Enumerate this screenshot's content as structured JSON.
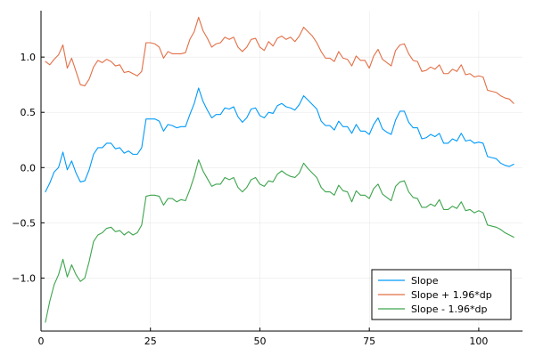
{
  "chart_data": {
    "type": "line",
    "title": "",
    "xlabel": "",
    "ylabel": "",
    "xlim": [
      0,
      110
    ],
    "ylim": [
      -1.48,
      1.42
    ],
    "x_ticks": [
      0,
      25,
      50,
      75,
      100
    ],
    "x_tick_labels": [
      "0",
      "25",
      "50",
      "75",
      "100"
    ],
    "y_ticks": [
      -1.0,
      -0.5,
      0.0,
      0.5,
      1.0
    ],
    "y_tick_labels": [
      "−1.0",
      "−0.5",
      "0.0",
      "0.5",
      "1.0"
    ],
    "grid": true,
    "legend_position": "bottom-right",
    "x": [
      1,
      2,
      3,
      4,
      5,
      6,
      7,
      8,
      9,
      10,
      11,
      12,
      13,
      14,
      15,
      16,
      17,
      18,
      19,
      20,
      21,
      22,
      23,
      24,
      25,
      26,
      27,
      28,
      29,
      30,
      31,
      32,
      33,
      34,
      35,
      36,
      37,
      38,
      39,
      40,
      41,
      42,
      43,
      44,
      45,
      46,
      47,
      48,
      49,
      50,
      51,
      52,
      53,
      54,
      55,
      56,
      57,
      58,
      59,
      60,
      61,
      62,
      63,
      64,
      65,
      66,
      67,
      68,
      69,
      70,
      71,
      72,
      73,
      74,
      75,
      76,
      77,
      78,
      79,
      80,
      81,
      82,
      83,
      84,
      85,
      86,
      87,
      88,
      89,
      90,
      91,
      92,
      93,
      94,
      95,
      96,
      97,
      98,
      99,
      100,
      101,
      102,
      103,
      104,
      105,
      106,
      107,
      108
    ],
    "series": [
      {
        "name": "Slope",
        "color": "#009AFA",
        "values": [
          -0.22,
          -0.14,
          -0.04,
          0.0,
          0.14,
          -0.02,
          0.06,
          -0.05,
          -0.13,
          -0.12,
          -0.02,
          0.12,
          0.18,
          0.18,
          0.22,
          0.22,
          0.17,
          0.18,
          0.13,
          0.15,
          0.12,
          0.12,
          0.18,
          0.44,
          0.44,
          0.44,
          0.42,
          0.33,
          0.39,
          0.38,
          0.36,
          0.37,
          0.37,
          0.48,
          0.58,
          0.72,
          0.6,
          0.52,
          0.45,
          0.48,
          0.48,
          0.54,
          0.53,
          0.55,
          0.46,
          0.41,
          0.45,
          0.53,
          0.54,
          0.47,
          0.45,
          0.5,
          0.49,
          0.56,
          0.58,
          0.55,
          0.54,
          0.52,
          0.57,
          0.65,
          0.61,
          0.57,
          0.53,
          0.42,
          0.38,
          0.38,
          0.34,
          0.42,
          0.37,
          0.37,
          0.31,
          0.39,
          0.33,
          0.33,
          0.3,
          0.39,
          0.45,
          0.35,
          0.32,
          0.3,
          0.43,
          0.51,
          0.51,
          0.41,
          0.36,
          0.36,
          0.26,
          0.27,
          0.3,
          0.28,
          0.31,
          0.22,
          0.22,
          0.26,
          0.24,
          0.31,
          0.24,
          0.25,
          0.22,
          0.23,
          0.22,
          0.1,
          0.09,
          0.08,
          0.04,
          0.02,
          0.01,
          0.03
        ]
      },
      {
        "name": "Slope + 1.96*dp",
        "color": "#E26F46",
        "values": [
          0.96,
          0.93,
          0.98,
          1.02,
          1.11,
          0.9,
          0.99,
          0.87,
          0.75,
          0.74,
          0.8,
          0.91,
          0.97,
          0.95,
          0.98,
          0.96,
          0.92,
          0.93,
          0.86,
          0.87,
          0.85,
          0.83,
          0.87,
          1.13,
          1.13,
          1.12,
          1.09,
          0.99,
          1.05,
          1.03,
          1.03,
          1.03,
          1.04,
          1.16,
          1.23,
          1.36,
          1.24,
          1.17,
          1.09,
          1.12,
          1.13,
          1.18,
          1.16,
          1.18,
          1.09,
          1.05,
          1.09,
          1.16,
          1.17,
          1.09,
          1.06,
          1.14,
          1.1,
          1.17,
          1.19,
          1.16,
          1.18,
          1.14,
          1.19,
          1.27,
          1.23,
          1.19,
          1.13,
          1.05,
          0.99,
          0.99,
          0.96,
          1.05,
          0.99,
          0.98,
          0.92,
          1.01,
          0.97,
          0.97,
          0.9,
          1.01,
          1.07,
          0.98,
          0.95,
          0.92,
          1.06,
          1.11,
          1.12,
          1.03,
          0.97,
          0.96,
          0.87,
          0.88,
          0.91,
          0.89,
          0.93,
          0.85,
          0.85,
          0.89,
          0.87,
          0.93,
          0.84,
          0.85,
          0.82,
          0.83,
          0.82,
          0.7,
          0.69,
          0.68,
          0.65,
          0.63,
          0.62,
          0.58
        ]
      },
      {
        "name": "Slope - 1.96*dp",
        "color": "#3DA44D",
        "values": [
          -1.4,
          -1.21,
          -1.06,
          -0.97,
          -0.83,
          -0.99,
          -0.88,
          -0.97,
          -1.03,
          -1.0,
          -0.85,
          -0.67,
          -0.61,
          -0.59,
          -0.55,
          -0.54,
          -0.58,
          -0.57,
          -0.61,
          -0.58,
          -0.61,
          -0.59,
          -0.52,
          -0.26,
          -0.25,
          -0.25,
          -0.26,
          -0.34,
          -0.28,
          -0.28,
          -0.31,
          -0.29,
          -0.3,
          -0.2,
          -0.08,
          0.07,
          -0.03,
          -0.1,
          -0.17,
          -0.15,
          -0.15,
          -0.09,
          -0.11,
          -0.09,
          -0.18,
          -0.22,
          -0.18,
          -0.11,
          -0.09,
          -0.15,
          -0.17,
          -0.12,
          -0.13,
          -0.06,
          -0.03,
          -0.06,
          -0.08,
          -0.09,
          -0.05,
          0.04,
          -0.01,
          -0.05,
          -0.09,
          -0.18,
          -0.22,
          -0.22,
          -0.25,
          -0.16,
          -0.21,
          -0.22,
          -0.31,
          -0.21,
          -0.25,
          -0.25,
          -0.28,
          -0.19,
          -0.15,
          -0.24,
          -0.27,
          -0.3,
          -0.17,
          -0.13,
          -0.12,
          -0.22,
          -0.27,
          -0.28,
          -0.36,
          -0.36,
          -0.33,
          -0.35,
          -0.29,
          -0.38,
          -0.38,
          -0.35,
          -0.37,
          -0.31,
          -0.39,
          -0.38,
          -0.41,
          -0.39,
          -0.41,
          -0.52,
          -0.53,
          -0.54,
          -0.56,
          -0.59,
          -0.61,
          -0.63
        ]
      }
    ]
  }
}
